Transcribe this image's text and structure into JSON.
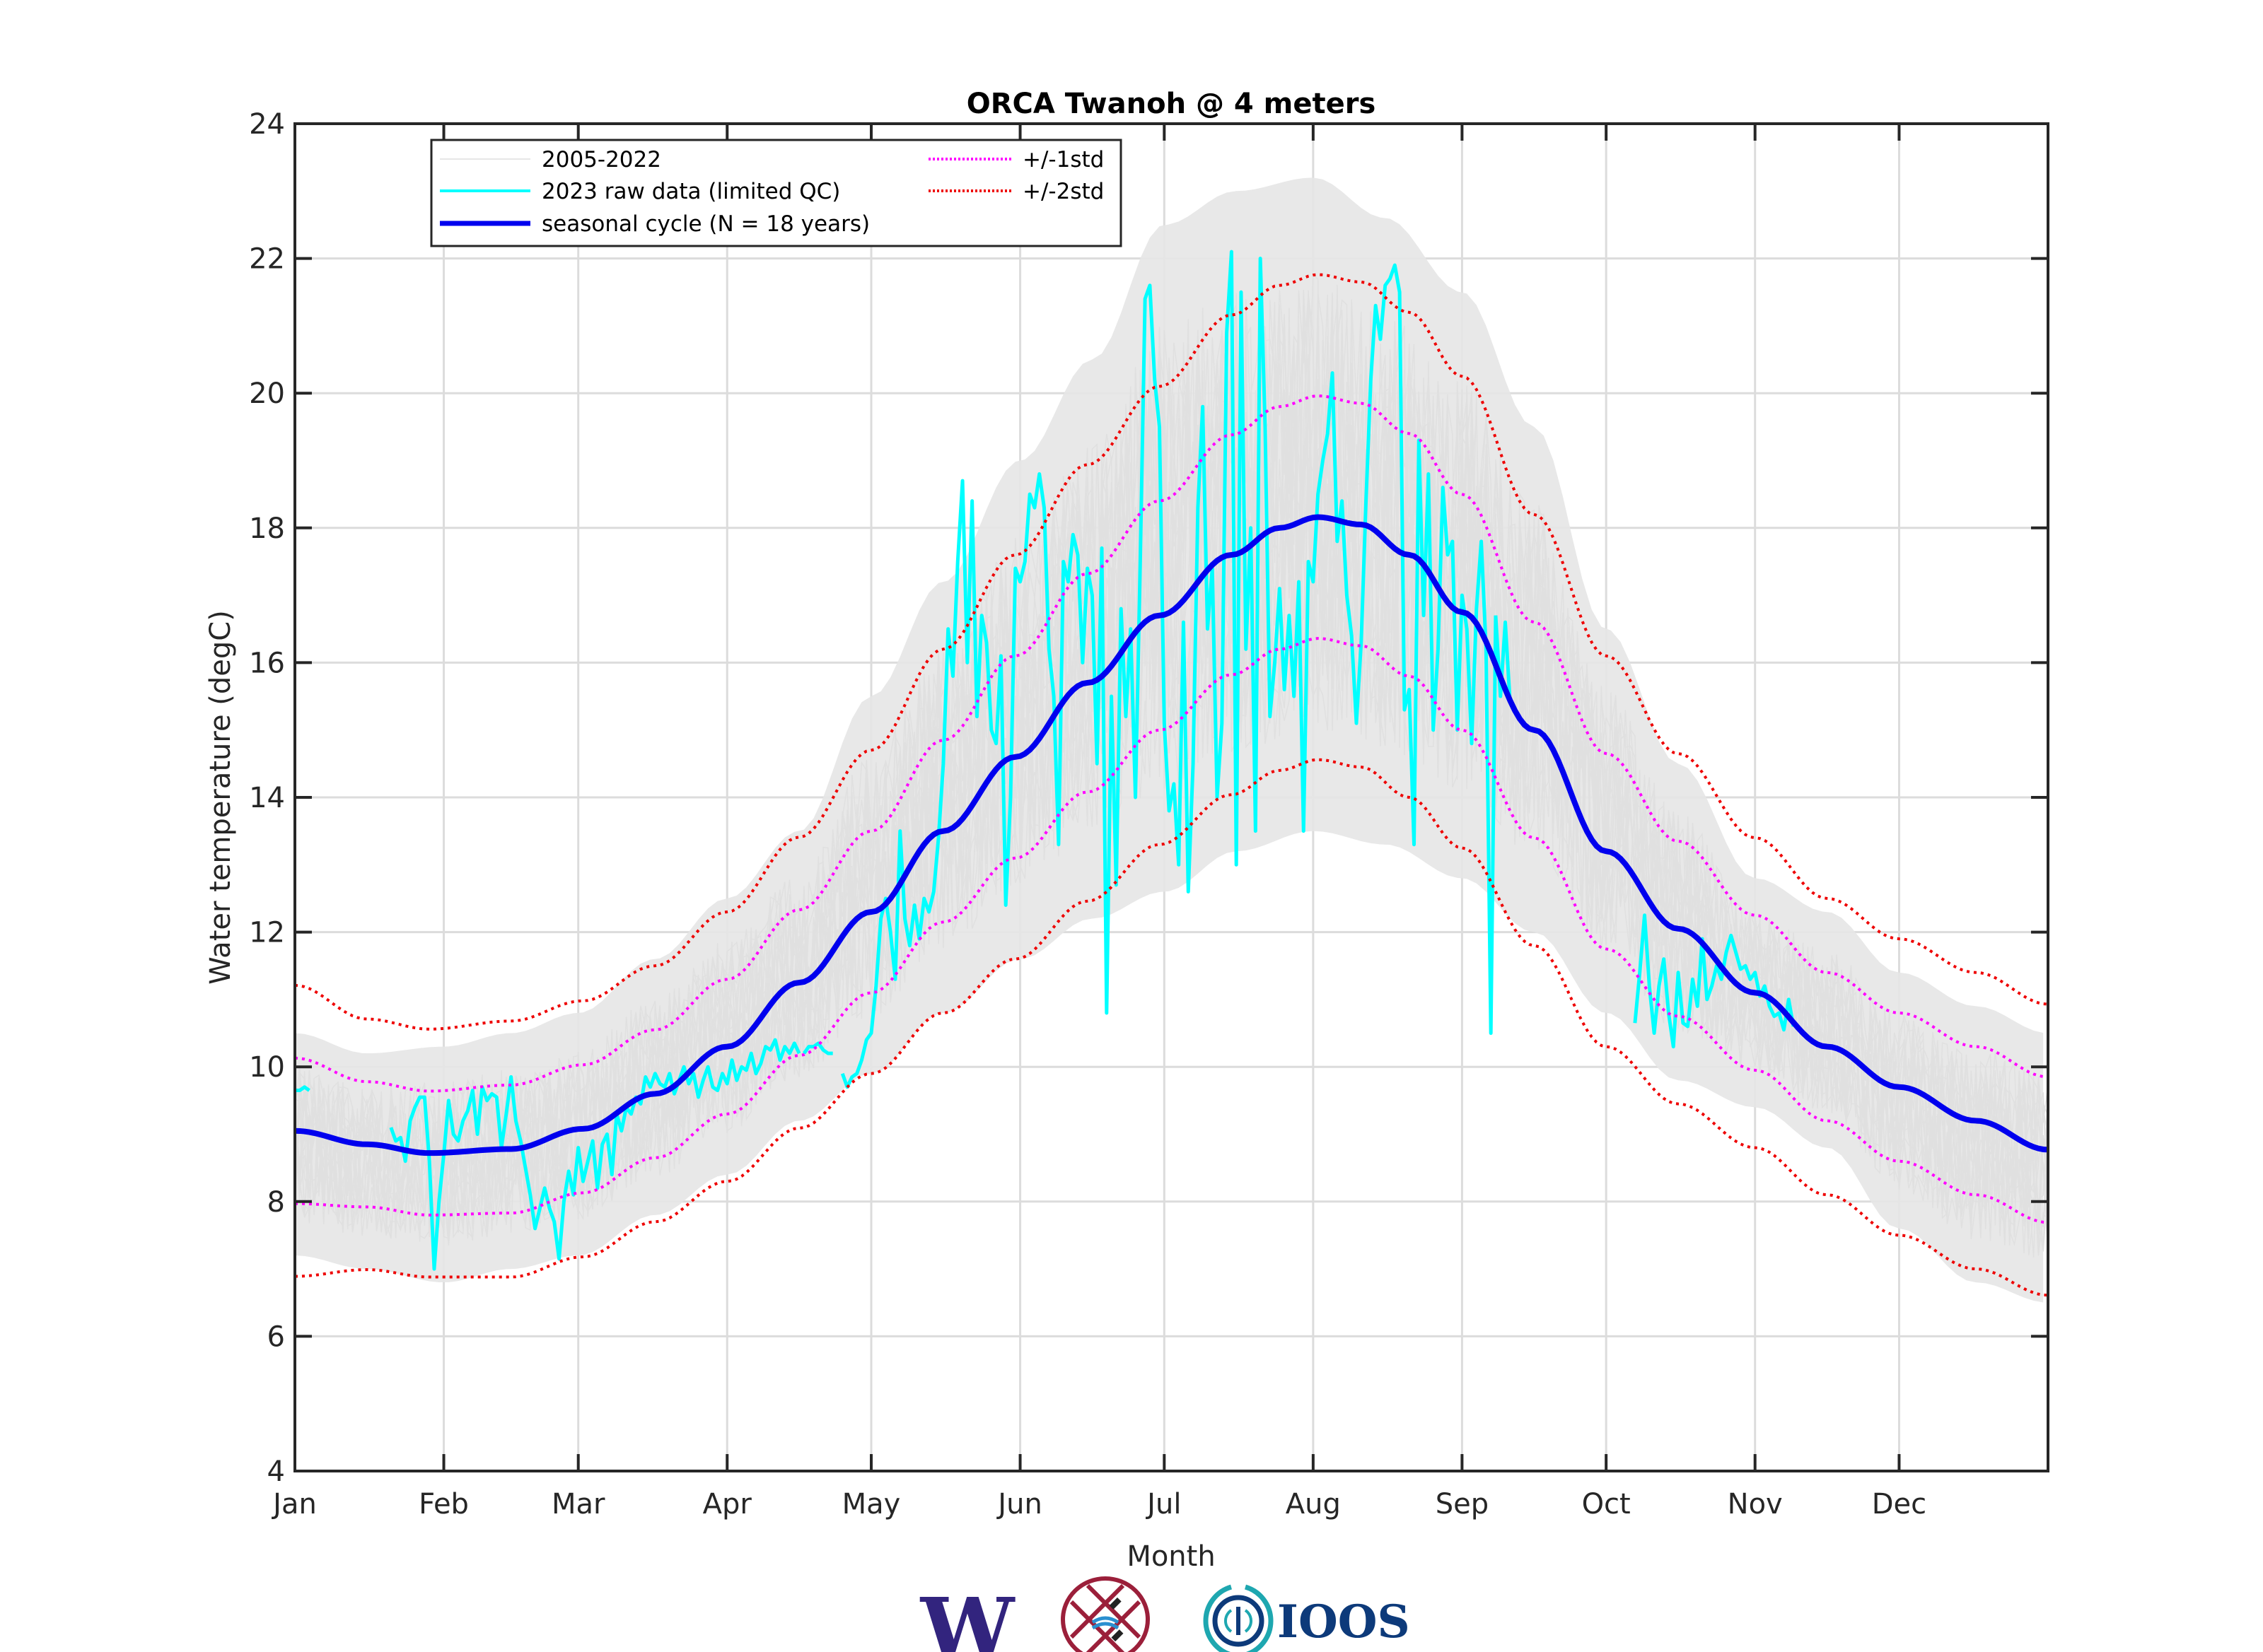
{
  "chart_data": {
    "type": "line",
    "title": "ORCA Twanoh @ 4 meters",
    "xlabel": "Month",
    "ylabel": "Water temperature (degC)",
    "xlim_days": [
      0,
      365
    ],
    "ylim": [
      4,
      24
    ],
    "grid": true,
    "yticks": [
      4,
      6,
      8,
      10,
      12,
      14,
      16,
      18,
      20,
      22,
      24
    ],
    "xticks": [
      {
        "label": "Jan",
        "day": 0
      },
      {
        "label": "Feb",
        "day": 31
      },
      {
        "label": "Mar",
        "day": 59
      },
      {
        "label": "Apr",
        "day": 90
      },
      {
        "label": "May",
        "day": 120
      },
      {
        "label": "Jun",
        "day": 151
      },
      {
        "label": "Jul",
        "day": 181
      },
      {
        "label": "Aug",
        "day": 212
      },
      {
        "label": "Sep",
        "day": 243
      },
      {
        "label": "Oct",
        "day": 273
      },
      {
        "label": "Nov",
        "day": 304
      },
      {
        "label": "Dec",
        "day": 334
      }
    ],
    "legend": {
      "placement": "top-left",
      "entries": [
        {
          "label": "2005-2022",
          "color": "#e6e6e6",
          "style": "solid-thin"
        },
        {
          "label": "2023 raw data (limited QC)",
          "color": "#00ffff",
          "style": "solid"
        },
        {
          "label": "seasonal cycle (N = 18 years)",
          "color": "#0000ee",
          "style": "solid-thick"
        },
        {
          "label": "+/-1std",
          "color": "#ff00ff",
          "style": "dotted"
        },
        {
          "label": "+/-2std",
          "color": "#ee0000",
          "style": "dotted"
        }
      ]
    },
    "series": [
      {
        "name": "seasonal cycle (N = 18 years)",
        "color": "#0000ee",
        "x_day": [
          0,
          15,
          28,
          45,
          60,
          75,
          90,
          105,
          120,
          135,
          150,
          165,
          180,
          195,
          205,
          213,
          222,
          232,
          243,
          258,
          273,
          288,
          304,
          319,
          334,
          350,
          365
        ],
        "y": [
          9.05,
          8.85,
          8.72,
          8.78,
          9.08,
          9.6,
          10.3,
          11.25,
          12.3,
          13.5,
          14.6,
          15.7,
          16.7,
          17.6,
          18.0,
          18.16,
          18.05,
          17.6,
          16.75,
          15.0,
          13.2,
          12.05,
          11.1,
          10.3,
          9.7,
          9.2,
          8.77
        ]
      },
      {
        "name": "std",
        "x_day": [
          0,
          15,
          28,
          45,
          60,
          75,
          90,
          105,
          120,
          135,
          150,
          165,
          180,
          195,
          205,
          213,
          222,
          232,
          243,
          258,
          273,
          288,
          304,
          319,
          334,
          350,
          365
        ],
        "y": [
          1.08,
          0.93,
          0.92,
          0.95,
          0.95,
          0.95,
          1.0,
          1.08,
          1.2,
          1.35,
          1.5,
          1.62,
          1.7,
          1.78,
          1.8,
          1.8,
          1.8,
          1.8,
          1.75,
          1.6,
          1.45,
          1.3,
          1.15,
          1.1,
          1.1,
          1.1,
          1.08
        ]
      },
      {
        "name": "2023 raw data (limited QC)",
        "color": "#00ffff",
        "segments": [
          {
            "x_day": [
              0,
              1,
              2,
              3
            ],
            "y": [
              9.65,
              9.65,
              9.7,
              9.65
            ]
          },
          {
            "x_day": [
              20,
              21,
              22,
              23,
              24,
              25,
              26,
              27,
              28,
              29,
              30,
              31,
              32,
              33,
              34,
              35,
              36,
              37,
              38,
              39,
              40,
              41,
              42,
              43,
              44,
              45,
              46,
              47,
              48,
              49,
              50,
              51,
              52,
              53,
              54,
              55,
              56,
              57,
              58,
              59,
              60,
              61,
              62,
              63,
              64,
              65,
              66,
              67,
              68,
              69,
              70,
              71,
              72,
              73,
              74,
              75,
              76,
              77,
              78,
              79,
              80,
              81,
              82,
              83,
              84,
              85,
              86,
              87,
              88,
              89,
              90,
              91,
              92,
              93,
              94,
              95,
              96,
              97,
              98,
              99,
              100,
              101,
              102,
              103,
              104,
              105
            ],
            "y": [
              9.1,
              8.9,
              8.95,
              8.6,
              9.2,
              9.4,
              9.55,
              9.55,
              8.6,
              7.0,
              8.0,
              8.7,
              9.5,
              9.0,
              8.9,
              9.2,
              9.35,
              9.65,
              9.0,
              9.7,
              9.5,
              9.6,
              9.55,
              8.8,
              9.3,
              9.85,
              9.2,
              8.9,
              8.5,
              8.1,
              7.6,
              7.9,
              8.2,
              7.9,
              7.7,
              7.15,
              8.0,
              8.45,
              8.1,
              8.8,
              8.3,
              8.6,
              8.9,
              8.2,
              8.85,
              9.0,
              8.4,
              9.3,
              9.05,
              9.4,
              9.3,
              9.55,
              9.45,
              9.85,
              9.7,
              9.9,
              9.75,
              9.7,
              9.9,
              9.6,
              9.8,
              10.0,
              9.75,
              9.9,
              9.55,
              9.8,
              10.0,
              9.7,
              9.65,
              9.9,
              9.75,
              10.1,
              9.8,
              10.0,
              9.95,
              10.2,
              9.9,
              10.05,
              10.3,
              10.25,
              10.4,
              10.1,
              10.3,
              10.2,
              10.35,
              10.2
            ]
          },
          {
            "x_day": [
              106,
              107,
              108,
              109,
              110,
              111,
              112
            ],
            "y": [
              10.2,
              10.3,
              10.3,
              10.35,
              10.25,
              10.2,
              10.2
            ]
          },
          {
            "x_day": [
              114,
              115,
              116,
              117,
              118,
              119,
              120,
              121,
              122,
              123,
              124,
              125,
              126,
              127,
              128,
              129,
              130,
              131,
              132,
              133,
              134,
              135,
              136,
              137,
              138,
              139,
              140,
              141,
              142,
              143,
              144,
              145,
              146,
              147,
              148,
              149,
              150,
              151,
              152,
              153,
              154,
              155,
              156,
              157,
              158,
              159,
              160,
              161,
              162,
              163,
              164,
              165,
              166,
              167,
              168,
              169,
              170,
              171,
              172,
              173,
              174,
              175,
              176,
              177,
              178,
              179,
              180,
              181,
              182,
              183,
              184,
              185,
              186,
              187,
              188,
              189,
              190,
              191,
              192,
              193,
              194,
              195,
              196,
              197,
              198,
              199,
              200,
              201,
              202,
              203,
              204,
              205,
              206,
              207,
              208,
              209,
              210,
              211,
              212,
              213,
              214,
              215,
              216,
              217,
              218,
              219,
              220,
              221,
              222,
              223,
              224,
              225,
              226,
              227,
              228,
              229,
              230,
              231,
              232,
              233,
              234,
              235,
              236,
              237,
              238,
              239,
              240,
              241,
              242,
              243,
              244,
              245,
              246,
              247,
              248,
              249,
              250
            ],
            "y": [
              9.9,
              9.7,
              9.85,
              9.9,
              10.1,
              10.4,
              10.5,
              11.2,
              12.2,
              12.5,
              12.0,
              11.3,
              13.5,
              12.2,
              11.8,
              12.4,
              11.9,
              12.5,
              12.3,
              12.6,
              13.4,
              14.5,
              16.5,
              15.8,
              17.5,
              18.7,
              16.0,
              18.4,
              15.2,
              16.7,
              16.3,
              15.0,
              14.8,
              16.1,
              12.4,
              14.0,
              17.4,
              17.2,
              17.5,
              18.5,
              18.3,
              18.8,
              18.3,
              16.2,
              15.5,
              13.3,
              17.5,
              17.2,
              17.9,
              17.6,
              16.0,
              17.4,
              17.0,
              14.5,
              17.7,
              10.8,
              15.5,
              12.7,
              16.8,
              15.2,
              16.5,
              14.0,
              17.5,
              21.4,
              21.6,
              20.2,
              19.5,
              15.1,
              13.8,
              14.2,
              13.0,
              16.6,
              12.6,
              14.5,
              18.3,
              19.8,
              16.5,
              17.4,
              14.0,
              15.1,
              20.9,
              22.1,
              13.0,
              21.5,
              16.2,
              18.0,
              13.5,
              22.0,
              19.5,
              15.2,
              16.0,
              17.1,
              15.6,
              16.7,
              15.5,
              17.2,
              13.5,
              17.5,
              17.2,
              18.5,
              19.0,
              19.4,
              20.3,
              17.8,
              18.4,
              17.0,
              16.4,
              15.1,
              16.3,
              18.4,
              20.2,
              21.3,
              20.8,
              21.6,
              21.7,
              21.9,
              21.5,
              15.3,
              15.6,
              13.3,
              19.3,
              16.7,
              18.8,
              15.0,
              16.2,
              18.6,
              17.6,
              17.8,
              15.0,
              17.0,
              16.5,
              14.8,
              16.8,
              17.8,
              16.2,
              10.5,
              16.7
            ]
          },
          {
            "x_day": [
              250,
              251,
              252,
              253
            ],
            "y": [
              16.7,
              15.5,
              16.6,
              15.4
            ]
          },
          {
            "x_day": [
              279,
              280,
              281,
              282,
              283,
              284,
              285,
              286,
              287,
              288,
              289,
              290,
              291,
              292,
              293,
              294,
              295,
              296,
              297,
              298,
              299,
              300,
              301,
              302,
              303,
              304,
              305,
              306,
              307,
              308,
              309,
              310,
              311,
              312
            ],
            "y": [
              10.65,
              11.4,
              12.25,
              11.2,
              10.5,
              11.2,
              11.6,
              10.8,
              10.3,
              11.4,
              10.65,
              10.6,
              11.3,
              10.9,
              11.9,
              11.0,
              11.2,
              11.5,
              11.3,
              11.7,
              11.95,
              11.7,
              11.45,
              11.5,
              11.3,
              11.4,
              11.05,
              11.2,
              10.9,
              10.75,
              10.8,
              10.55,
              11.0,
              10.6
            ]
          }
        ]
      },
      {
        "name": "2005-2022",
        "color": "#e6e6e6",
        "envelope_x_day": [
          0,
          15,
          31,
          45,
          59,
          75,
          90,
          105,
          120,
          135,
          151,
          166,
          181,
          196,
          212,
          227,
          243,
          258,
          273,
          288,
          304,
          319,
          334,
          350,
          365
        ],
        "envelope_min": [
          7.2,
          7.0,
          6.8,
          7.0,
          7.2,
          7.8,
          8.4,
          9.2,
          9.9,
          10.8,
          11.6,
          12.2,
          12.6,
          13.2,
          13.5,
          13.3,
          12.8,
          12.0,
          10.8,
          9.8,
          9.4,
          8.8,
          7.6,
          6.8,
          6.5
        ],
        "envelope_max": [
          10.5,
          10.2,
          10.3,
          10.5,
          10.8,
          11.6,
          12.5,
          13.5,
          15.5,
          17.2,
          19.0,
          20.5,
          22.5,
          23.0,
          23.2,
          22.6,
          21.5,
          19.5,
          16.5,
          14.5,
          12.8,
          12.3,
          11.4,
          10.9,
          10.5
        ]
      }
    ]
  },
  "logos": [
    {
      "name": "uw-logo",
      "text": "W"
    },
    {
      "name": "tribal-logo",
      "text": ""
    },
    {
      "name": "ioos-logo",
      "text": "IOOS"
    }
  ]
}
